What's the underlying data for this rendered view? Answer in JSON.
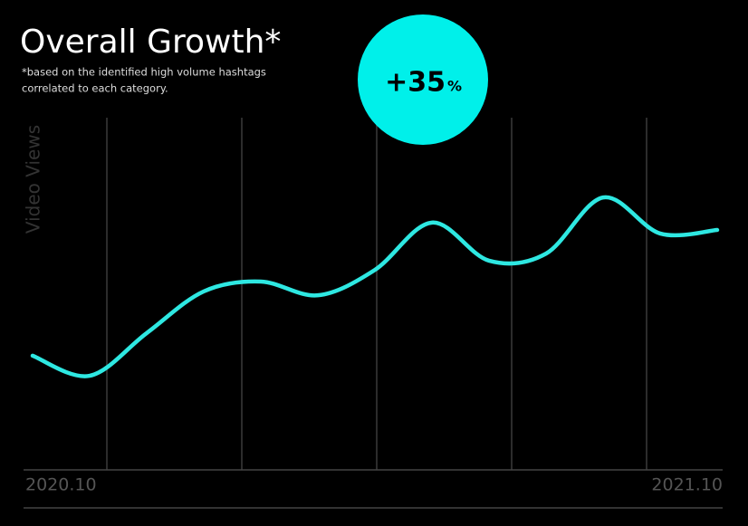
{
  "chart_data": {
    "type": "line",
    "title": "Overall Growth*",
    "subtitle_lines": [
      "*based on the identified high volume hashtags",
      "correlated to each category."
    ],
    "badge_value": "+35",
    "badge_unit": "%",
    "y_label": "Video Views",
    "categories": [
      "2020.10",
      null,
      null,
      null,
      null,
      null,
      null,
      null,
      null,
      null,
      null,
      null,
      "2021.10"
    ],
    "series": [
      {
        "name": "Video Views",
        "color": "#2ee8e2",
        "values": [
          32.6,
          26.9,
          39.0,
          50.8,
          53.6,
          49.7,
          56.9,
          70.3,
          59.5,
          61.5,
          77.4,
          67.2,
          68.2
        ]
      }
    ],
    "ylim": [
      0,
      100
    ]
  }
}
